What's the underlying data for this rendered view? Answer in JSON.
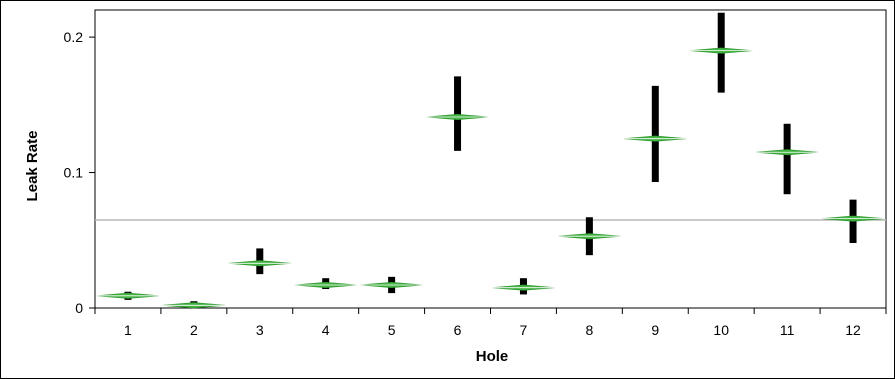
{
  "chart_data": {
    "type": "scatter",
    "title": "",
    "xlabel": "Hole",
    "ylabel": "Leak Rate",
    "categories": [
      "1",
      "2",
      "3",
      "4",
      "5",
      "6",
      "7",
      "8",
      "9",
      "10",
      "11",
      "12"
    ],
    "ylim": [
      0,
      0.22
    ],
    "yticks": [
      0,
      0.1,
      0.2
    ],
    "ytick_labels": [
      "0",
      "0.1",
      "0.2"
    ],
    "grand_mean": 0.065,
    "groups": [
      {
        "hole": "1",
        "mean": 0.009,
        "min": 0.006,
        "max": 0.012
      },
      {
        "hole": "2",
        "mean": 0.002,
        "min": 0.0,
        "max": 0.005
      },
      {
        "hole": "3",
        "mean": 0.033,
        "min": 0.025,
        "max": 0.044
      },
      {
        "hole": "4",
        "mean": 0.017,
        "min": 0.014,
        "max": 0.022
      },
      {
        "hole": "5",
        "mean": 0.017,
        "min": 0.011,
        "max": 0.023
      },
      {
        "hole": "6",
        "mean": 0.141,
        "min": 0.116,
        "max": 0.171
      },
      {
        "hole": "7",
        "mean": 0.015,
        "min": 0.01,
        "max": 0.022
      },
      {
        "hole": "8",
        "mean": 0.053,
        "min": 0.039,
        "max": 0.067
      },
      {
        "hole": "9",
        "mean": 0.125,
        "min": 0.093,
        "max": 0.164
      },
      {
        "hole": "10",
        "mean": 0.19,
        "min": 0.159,
        "max": 0.218
      },
      {
        "hole": "11",
        "mean": 0.115,
        "min": 0.084,
        "max": 0.136
      },
      {
        "hole": "12",
        "mean": 0.066,
        "min": 0.048,
        "max": 0.08
      }
    ],
    "grid": false,
    "diamond_color": "#45b545",
    "point_color": "#000000",
    "mean_line_color": "#b8b8b8"
  }
}
